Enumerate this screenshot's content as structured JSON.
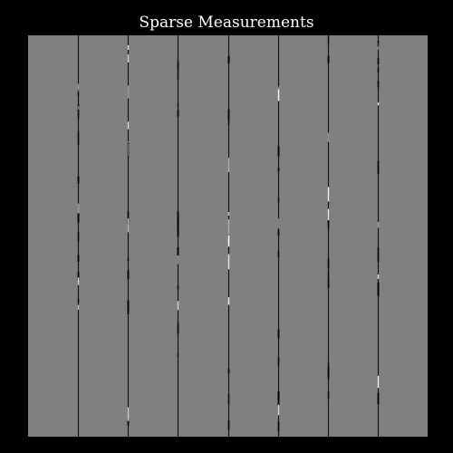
{
  "figure": {
    "title": "Sparse Measurements"
  },
  "image": {
    "description_kind": "measurement-mask",
    "background_color": "#808080",
    "line_color_dark": "#000000",
    "line_color_light": "#ffffff",
    "column_count": 7
  }
}
